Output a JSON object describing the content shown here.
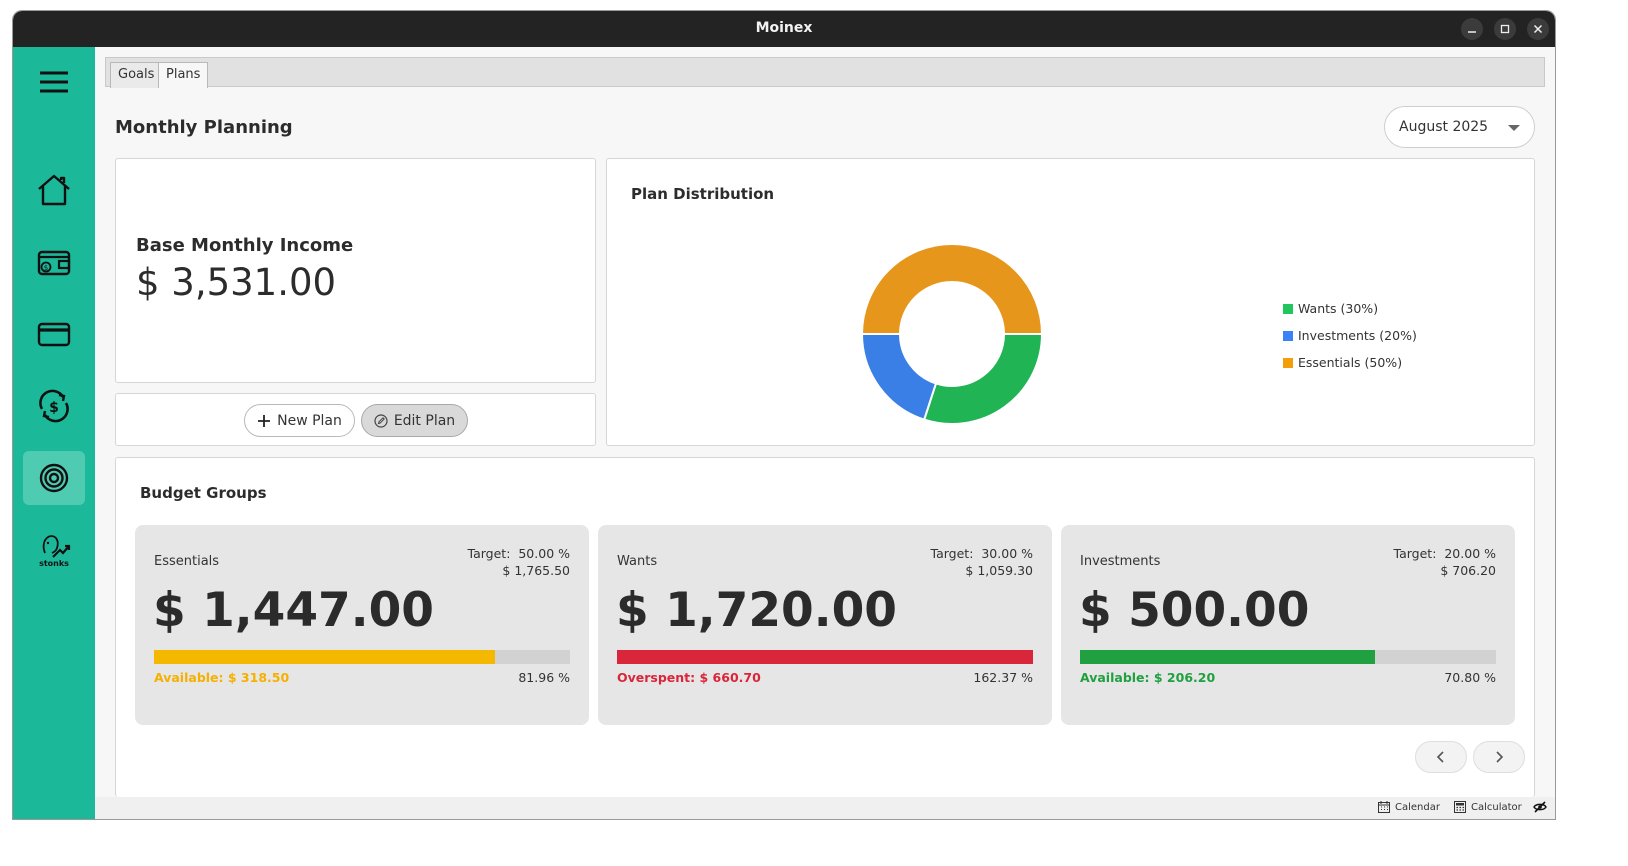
{
  "window": {
    "title": "Moinex"
  },
  "sidebar": {
    "items": [
      {
        "icon": "menu-icon"
      },
      {
        "icon": "home-icon"
      },
      {
        "icon": "wallet-icon"
      },
      {
        "icon": "credit-card-icon"
      },
      {
        "icon": "recurring-transactions-icon"
      },
      {
        "icon": "target-icon",
        "active": true
      },
      {
        "icon": "stonks-icon",
        "caption": "stonks"
      }
    ]
  },
  "tabs": [
    {
      "label": "Goals",
      "active": false
    },
    {
      "label": "Plans",
      "active": true
    }
  ],
  "page": {
    "title": "Monthly Planning",
    "month_select": "August 2025"
  },
  "income": {
    "label": "Base Monthly Income",
    "value": "$ 3,531.00"
  },
  "actions": {
    "new_plan": "New Plan",
    "edit_plan": "Edit Plan"
  },
  "distribution": {
    "title": "Plan Distribution",
    "colors": {
      "wants": "#20b455",
      "investments": "#3a7fe6",
      "essentials": "#e7961c"
    },
    "legend": [
      {
        "label": "Wants (30%)",
        "color": "#22c55e"
      },
      {
        "label": "Investments (20%)",
        "color": "#3b82f6"
      },
      {
        "label": "Essentials (50%)",
        "color": "#f59e0b"
      }
    ],
    "slices": [
      {
        "name": "Wants",
        "percent": 30
      },
      {
        "name": "Investments",
        "percent": 20
      },
      {
        "name": "Essentials",
        "percent": 50
      }
    ]
  },
  "budget_groups": {
    "title": "Budget Groups",
    "groups": [
      {
        "name": "Essentials",
        "target_label": "Target:",
        "target_pct": "50.00 %",
        "target_amount": "$ 1,765.50",
        "amount": "$ 1,447.00",
        "status": "Available: $ 318.50",
        "status_color": "#f5b000",
        "bar_color": "#f5b800",
        "progress": 0.8196,
        "percent": "81.96 %"
      },
      {
        "name": "Wants",
        "target_label": "Target:",
        "target_pct": "30.00 %",
        "target_amount": "$ 1,059.30",
        "amount": "$ 1,720.00",
        "status": "Overspent: $ 660.70",
        "status_color": "#d9263a",
        "bar_color": "#d9263a",
        "progress": 1.0,
        "percent": "162.37 %"
      },
      {
        "name": "Investments",
        "target_label": "Target:",
        "target_pct": "20.00 %",
        "target_amount": "$ 706.20",
        "amount": "$ 500.00",
        "status": "Available: $ 206.20",
        "status_color": "#20a040",
        "bar_color": "#20a040",
        "progress": 0.708,
        "percent": "70.80 %"
      }
    ]
  },
  "statusbar": {
    "calendar": "Calendar",
    "calculator": "Calculator"
  }
}
